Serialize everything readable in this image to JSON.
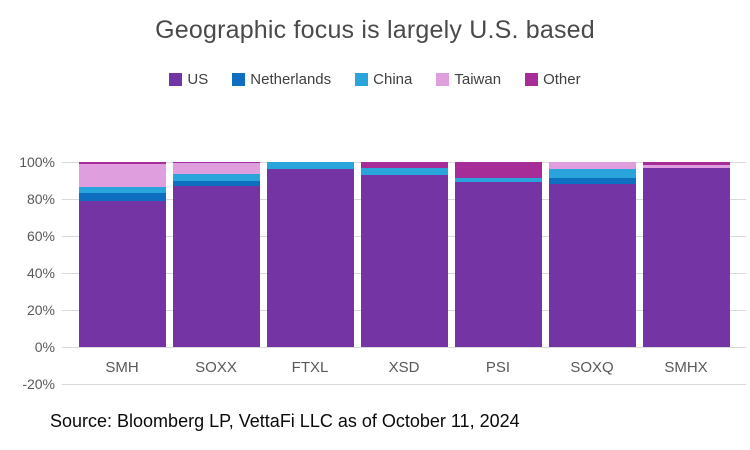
{
  "title": "Geographic focus is largely U.S. based",
  "source_note": "Source: Bloomberg LP, VettaFi LLC as of October 11, 2024",
  "colors": {
    "title_text": "#4a4a4a",
    "axis_text": "#595959",
    "gridline": "#d9d9d9",
    "source_text": "#0a0a0a",
    "background": "#ffffff",
    "us": "#7434a4",
    "netherlands": "#0e6fc1",
    "china": "#2aa5dc",
    "taiwan": "#df9fde",
    "other": "#a62c98"
  },
  "chart_data": {
    "type": "bar",
    "stacked": true,
    "title": "Geographic focus is largely U.S. based",
    "categories": [
      "SMH",
      "SOXX",
      "FTXL",
      "XSD",
      "PSI",
      "SOXQ",
      "SMHX"
    ],
    "series": [
      {
        "name": "US",
        "color": "#7434a4",
        "values": [
          79,
          87,
          96,
          93,
          89,
          88,
          97
        ]
      },
      {
        "name": "Netherlands",
        "color": "#0e6fc1",
        "values": [
          4,
          3,
          0,
          0,
          0,
          3.5,
          0
        ]
      },
      {
        "name": "China",
        "color": "#2aa5dc",
        "values": [
          3.5,
          3.5,
          4,
          3.5,
          2.5,
          4.5,
          0
        ]
      },
      {
        "name": "Taiwan",
        "color": "#df9fde",
        "values": [
          12.5,
          6,
          0,
          0,
          0,
          4,
          1.5
        ]
      },
      {
        "name": "Other",
        "color": "#a62c98",
        "values": [
          1,
          0.5,
          0,
          3.5,
          8.5,
          0,
          1.5
        ]
      }
    ],
    "xlabel": "",
    "ylabel": "",
    "y_ticks": [
      "100%",
      "80%",
      "60%",
      "40%",
      "20%",
      "0%",
      "-20%"
    ],
    "ylim": [
      -20,
      100
    ],
    "y_step_pct": 20,
    "grid": true,
    "legend_position": "top",
    "legend": [
      "US",
      "Netherlands",
      "China",
      "Taiwan",
      "Other"
    ],
    "unit": "percent of fund geographic exposure"
  }
}
